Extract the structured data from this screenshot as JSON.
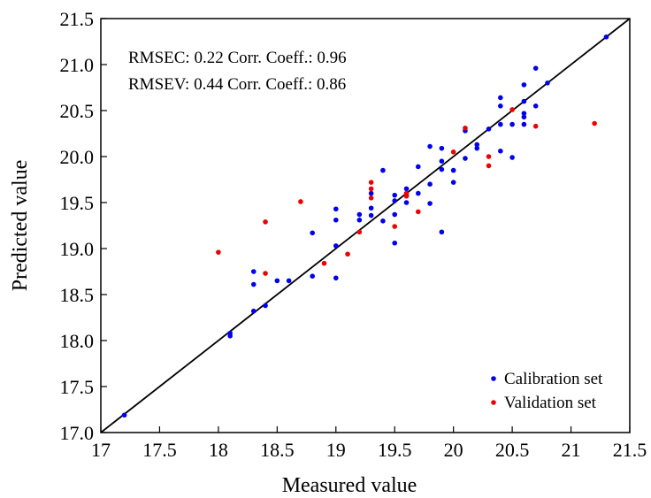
{
  "chart_data": {
    "type": "scatter",
    "title": "",
    "xlabel": "Measured value",
    "ylabel": "Predicted value",
    "xlim": [
      17,
      21.5
    ],
    "ylim": [
      17.0,
      21.5
    ],
    "x_ticks": [
      "17",
      "17.5",
      "18",
      "18.5",
      "19",
      "19.5",
      "20",
      "20.5",
      "21",
      "21.5"
    ],
    "y_ticks": [
      "17.0",
      "17.5",
      "18.0",
      "18.5",
      "19.0",
      "19.5",
      "20.0",
      "20.5",
      "21.0",
      "21.5"
    ],
    "grid": false,
    "legend": "bottom-right",
    "reference_line": {
      "x": [
        17,
        21.5
      ],
      "y": [
        17.0,
        21.5
      ],
      "color": "#000000"
    },
    "annotations": [
      "RMSEC: 0.22 Corr. Coeff.: 0.96",
      "RMSEV: 0.44 Corr. Coeff.: 0.86"
    ],
    "series": [
      {
        "name": "Calibration set",
        "color": "#0000ee",
        "points": [
          [
            17.2,
            17.19
          ],
          [
            18.1,
            18.08
          ],
          [
            18.1,
            18.05
          ],
          [
            18.3,
            18.32
          ],
          [
            18.3,
            18.61
          ],
          [
            18.3,
            18.75
          ],
          [
            18.4,
            18.38
          ],
          [
            18.5,
            18.65
          ],
          [
            18.6,
            18.65
          ],
          [
            18.8,
            18.7
          ],
          [
            18.8,
            19.17
          ],
          [
            19.0,
            18.68
          ],
          [
            19.0,
            19.03
          ],
          [
            19.0,
            19.31
          ],
          [
            19.0,
            19.43
          ],
          [
            19.2,
            19.31
          ],
          [
            19.2,
            19.37
          ],
          [
            19.3,
            19.36
          ],
          [
            19.3,
            19.44
          ],
          [
            19.3,
            19.6
          ],
          [
            19.4,
            19.3
          ],
          [
            19.4,
            19.85
          ],
          [
            19.5,
            19.06
          ],
          [
            19.5,
            19.37
          ],
          [
            19.5,
            19.52
          ],
          [
            19.5,
            19.58
          ],
          [
            19.6,
            19.5
          ],
          [
            19.6,
            19.58
          ],
          [
            19.6,
            19.65
          ],
          [
            19.7,
            19.6
          ],
          [
            19.7,
            19.89
          ],
          [
            19.8,
            19.49
          ],
          [
            19.8,
            19.7
          ],
          [
            19.8,
            20.11
          ],
          [
            19.9,
            19.18
          ],
          [
            19.9,
            19.86
          ],
          [
            19.9,
            19.95
          ],
          [
            19.9,
            20.09
          ],
          [
            20.0,
            19.72
          ],
          [
            20.0,
            19.85
          ],
          [
            20.1,
            19.98
          ],
          [
            20.1,
            20.28
          ],
          [
            20.2,
            20.09
          ],
          [
            20.2,
            20.13
          ],
          [
            20.3,
            20.3
          ],
          [
            20.4,
            20.06
          ],
          [
            20.4,
            20.35
          ],
          [
            20.4,
            20.55
          ],
          [
            20.4,
            20.64
          ],
          [
            20.5,
            19.99
          ],
          [
            20.5,
            20.35
          ],
          [
            20.6,
            20.35
          ],
          [
            20.6,
            20.43
          ],
          [
            20.6,
            20.47
          ],
          [
            20.6,
            20.6
          ],
          [
            20.6,
            20.78
          ],
          [
            20.7,
            20.55
          ],
          [
            20.7,
            20.96
          ],
          [
            20.8,
            20.8
          ],
          [
            21.3,
            21.3
          ]
        ]
      },
      {
        "name": "Validation set",
        "color": "#ee0000",
        "points": [
          [
            18.0,
            18.96
          ],
          [
            18.4,
            18.73
          ],
          [
            18.4,
            19.29
          ],
          [
            18.7,
            19.51
          ],
          [
            18.9,
            18.84
          ],
          [
            19.1,
            18.94
          ],
          [
            19.2,
            19.18
          ],
          [
            19.3,
            19.55
          ],
          [
            19.3,
            19.65
          ],
          [
            19.3,
            19.72
          ],
          [
            19.5,
            19.24
          ],
          [
            19.6,
            19.57
          ],
          [
            19.6,
            19.6
          ],
          [
            19.7,
            19.4
          ],
          [
            20.0,
            20.05
          ],
          [
            20.1,
            20.31
          ],
          [
            20.3,
            19.9
          ],
          [
            20.3,
            20.0
          ],
          [
            20.5,
            20.51
          ],
          [
            20.7,
            20.33
          ],
          [
            21.2,
            20.36
          ]
        ]
      }
    ]
  }
}
